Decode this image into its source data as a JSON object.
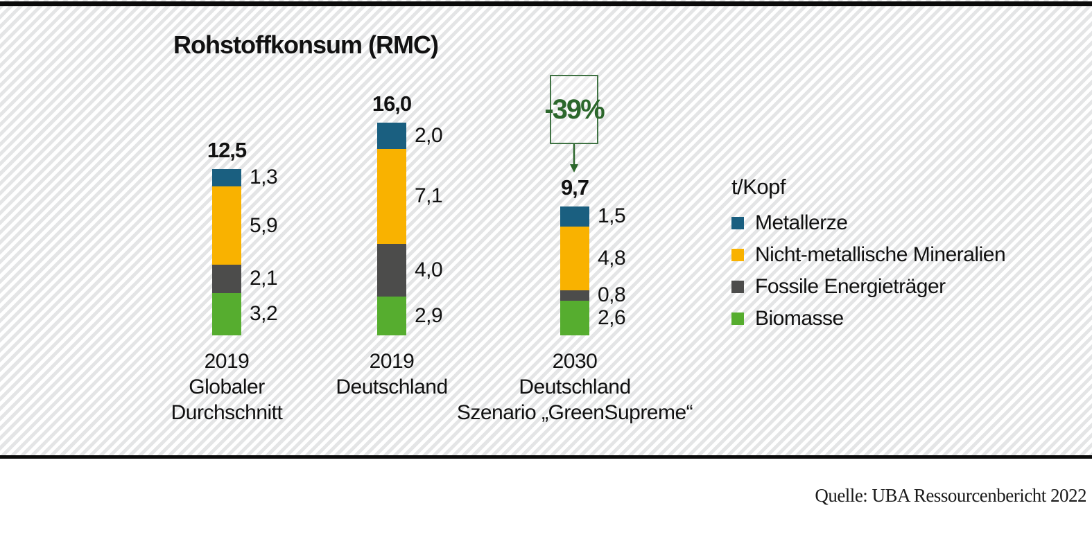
{
  "chart_data": {
    "type": "bar",
    "subtype": "stacked-vertical",
    "title": "Rohstoffkonsum (RMC)",
    "unit_label": "t/Kopf",
    "grid": false,
    "legend_position": "right",
    "legend": [
      {
        "name": "Metallerze",
        "color": "#1a5f80"
      },
      {
        "name": "Nicht-metallische Mineralien",
        "color": "#f9b200"
      },
      {
        "name": "Fossile Energieträger",
        "color": "#4c4c4b"
      },
      {
        "name": "Biomasse",
        "color": "#56ad2f"
      }
    ],
    "bars": [
      {
        "category_lines": [
          "2019",
          "Globaler",
          "Durchschnitt"
        ],
        "total_value": 12.5,
        "total_label": "12,5",
        "segments_top_to_bottom": [
          {
            "name": "Metallerze",
            "value": 1.3,
            "label": "1,3"
          },
          {
            "name": "Nicht-metallische Mineralien",
            "value": 5.9,
            "label": "5,9"
          },
          {
            "name": "Fossile Energieträger",
            "value": 2.1,
            "label": "2,1"
          },
          {
            "name": "Biomasse",
            "value": 3.2,
            "label": "3,2"
          }
        ]
      },
      {
        "category_lines": [
          "2019",
          "Deutschland"
        ],
        "total_value": 16.0,
        "total_label": "16,0",
        "segments_top_to_bottom": [
          {
            "name": "Metallerze",
            "value": 2.0,
            "label": "2,0"
          },
          {
            "name": "Nicht-metallische Mineralien",
            "value": 7.1,
            "label": "7,1"
          },
          {
            "name": "Fossile Energieträger",
            "value": 4.0,
            "label": "4,0"
          },
          {
            "name": "Biomasse",
            "value": 2.9,
            "label": "2,9"
          }
        ]
      },
      {
        "category_lines": [
          "2030",
          "Deutschland",
          "Szenario „GreenSupreme“"
        ],
        "total_value": 9.7,
        "total_label": "9,7",
        "segments_top_to_bottom": [
          {
            "name": "Metallerze",
            "value": 1.5,
            "label": "1,5"
          },
          {
            "name": "Nicht-metallische Mineralien",
            "value": 4.8,
            "label": "4,8"
          },
          {
            "name": "Fossile Energieträger",
            "value": 0.8,
            "label": "0,8"
          },
          {
            "name": "Biomasse",
            "value": 2.6,
            "label": "2,6"
          }
        ]
      }
    ],
    "annotation": {
      "text": "-39%",
      "target_bar_index": 2,
      "color": "#2c672c"
    },
    "source": "Quelle: UBA Ressourcenbericht 2022"
  }
}
